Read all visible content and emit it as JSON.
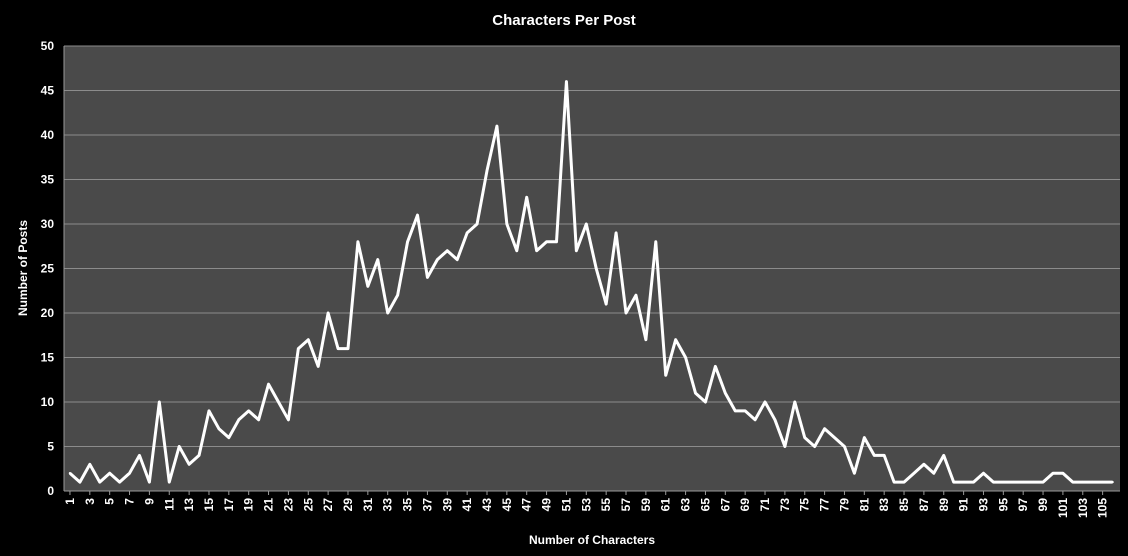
{
  "colors": {
    "background": "#000000",
    "plot_area": "#4a4a4a",
    "gridline": "#8c8c8c",
    "line": "#ffffff",
    "text": "#ffffff"
  },
  "chart_data": {
    "type": "line",
    "title": "Characters Per Post",
    "xlabel": "Number of Characters",
    "ylabel": "Number of Posts",
    "ylim": [
      0,
      50
    ],
    "yticks": [
      0,
      5,
      10,
      15,
      20,
      25,
      30,
      35,
      40,
      45,
      50
    ],
    "grid": true,
    "legend": "none",
    "x": [
      1,
      2,
      3,
      4,
      5,
      6,
      7,
      8,
      9,
      10,
      11,
      12,
      13,
      14,
      15,
      16,
      17,
      18,
      19,
      20,
      21,
      22,
      23,
      24,
      25,
      26,
      27,
      28,
      29,
      30,
      31,
      32,
      33,
      34,
      35,
      36,
      37,
      38,
      39,
      40,
      41,
      42,
      43,
      44,
      45,
      46,
      47,
      48,
      49,
      50,
      51,
      52,
      53,
      54,
      55,
      56,
      57,
      58,
      59,
      60,
      61,
      62,
      63,
      64,
      65,
      66,
      67,
      68,
      69,
      70,
      71,
      72,
      73,
      74,
      75,
      76,
      77,
      78,
      79,
      80,
      81,
      82,
      83,
      84,
      85,
      86,
      87,
      88,
      89,
      90,
      91,
      92,
      93,
      94,
      95,
      96,
      97,
      98,
      99,
      100,
      101,
      102,
      103,
      104,
      105,
      106
    ],
    "xtick_labels": [
      "1",
      "3",
      "5",
      "7",
      "9",
      "11",
      "13",
      "15",
      "17",
      "19",
      "21",
      "23",
      "25",
      "27",
      "29",
      "31",
      "33",
      "35",
      "37",
      "39",
      "41",
      "43",
      "45",
      "47",
      "49",
      "51",
      "53",
      "55",
      "57",
      "59",
      "61",
      "63",
      "65",
      "67",
      "69",
      "71",
      "73",
      "75",
      "77",
      "79",
      "81",
      "83",
      "85",
      "87",
      "89",
      "91",
      "93",
      "95",
      "97",
      "99",
      "101",
      "103",
      "105"
    ],
    "series": [
      {
        "values": [
          2,
          1,
          3,
          1,
          2,
          1,
          2,
          4,
          1,
          10,
          1,
          5,
          3,
          4,
          9,
          7,
          6,
          8,
          9,
          8,
          12,
          10,
          8,
          16,
          17,
          14,
          20,
          16,
          16,
          28,
          23,
          26,
          20,
          22,
          28,
          31,
          24,
          26,
          27,
          26,
          29,
          30,
          36,
          41,
          30,
          27,
          33,
          27,
          28,
          28,
          46,
          27,
          30,
          25,
          21,
          29,
          20,
          22,
          17,
          28,
          13,
          17,
          15,
          11,
          10,
          14,
          11,
          9,
          9,
          8,
          10,
          8,
          5,
          10,
          6,
          5,
          7,
          6,
          5,
          2,
          6,
          4,
          4,
          1,
          1,
          2,
          3,
          2,
          4,
          1,
          1,
          1,
          2,
          1,
          1,
          1,
          1,
          1,
          1,
          2,
          2,
          1,
          1,
          1,
          1,
          1
        ]
      }
    ]
  }
}
